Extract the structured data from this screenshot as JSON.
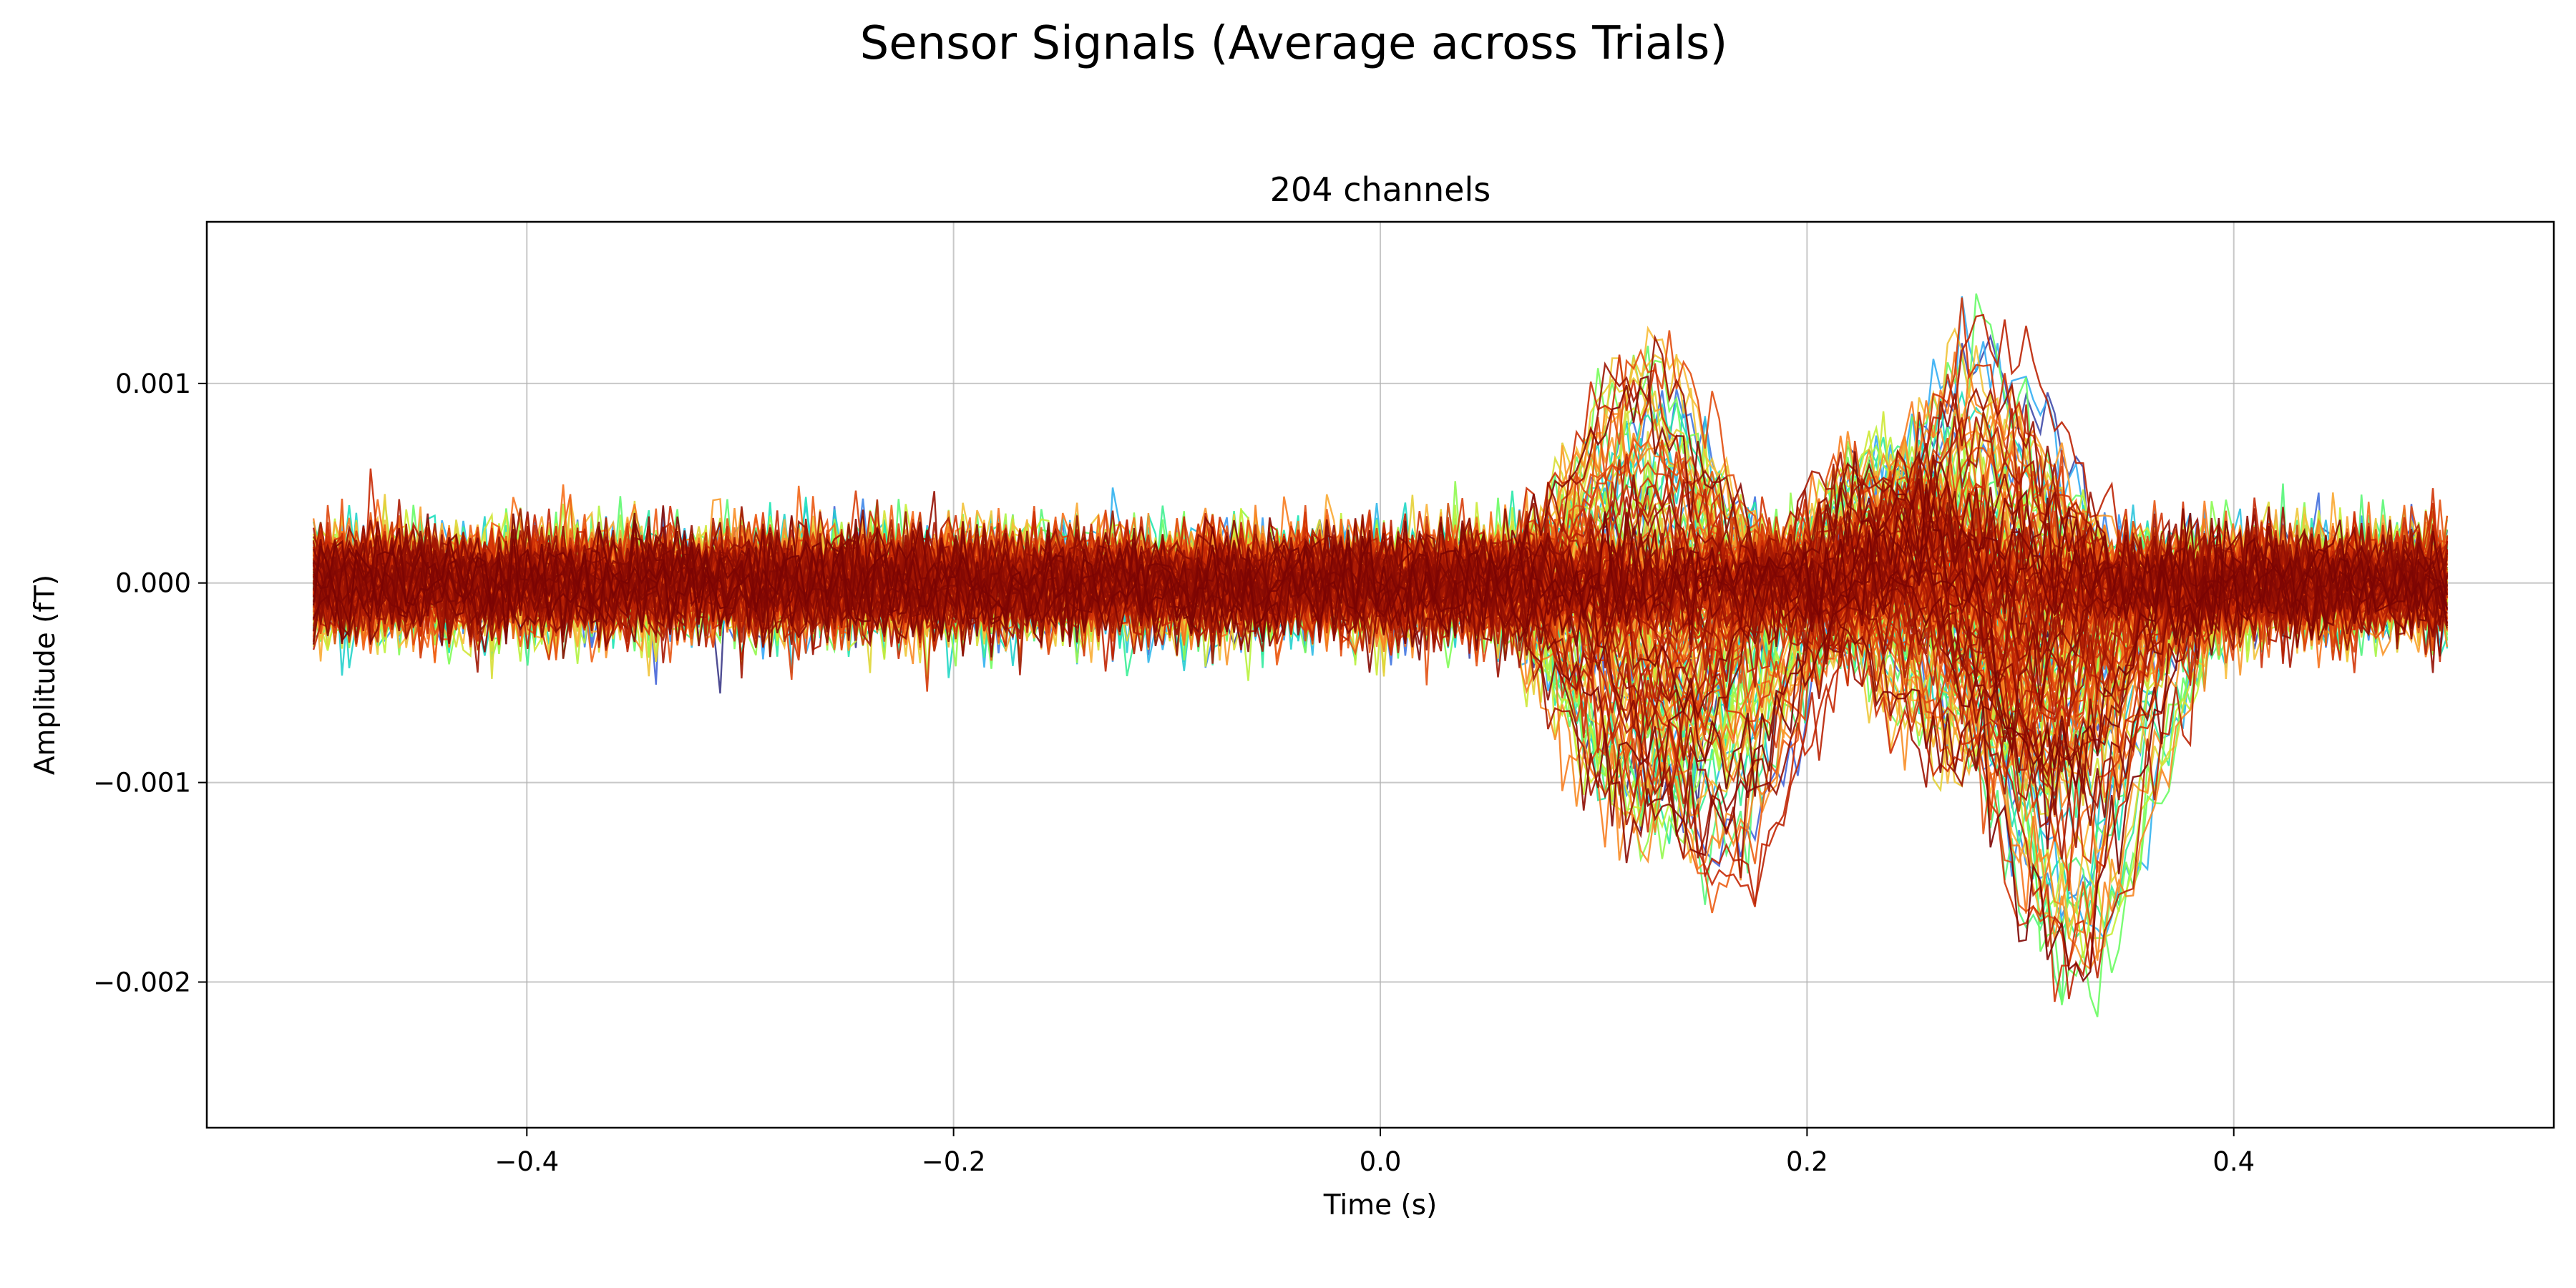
{
  "figure": {
    "suptitle": "Sensor Signals  (Average across Trials)"
  },
  "chart_data": {
    "type": "line",
    "title": "204 channels",
    "xlabel": "Time (s)",
    "ylabel": "Amplitude (fT)",
    "xlim": [
      -0.55,
      0.55
    ],
    "ylim": [
      -0.00273,
      0.00181
    ],
    "xticks": [
      -0.4,
      -0.2,
      0.0,
      0.2,
      0.4
    ],
    "xtick_labels": [
      "−0.4",
      "−0.2",
      "0.0",
      "0.2",
      "0.4"
    ],
    "yticks": [
      0.001,
      0.0,
      -0.001,
      -0.002
    ],
    "ytick_labels": [
      "0.001",
      "0.000",
      "−0.001",
      "−0.002"
    ],
    "grid": true,
    "legend": false,
    "n_series": 204,
    "time_range": [
      -0.5,
      0.5
    ],
    "colormap": "turbo",
    "colormap_stops": [
      "#30123b",
      "#4662d7",
      "#36aaf9",
      "#1ae4b6",
      "#72fe5e",
      "#c8ef34",
      "#faba39",
      "#f66b19",
      "#ca2a04",
      "#7a0403"
    ],
    "baseline_noise_amplitude": 0.00022,
    "series": [
      {
        "name": "",
        "peaks": [
          [
            0.125,
            0.00095,
            0.028
          ],
          [
            0.275,
            -0.00075,
            0.035
          ]
        ]
      },
      {
        "name": "",
        "peaks": [
          [
            0.12,
            -0.00105,
            0.03
          ],
          [
            0.235,
            0.00055,
            0.03
          ]
        ]
      },
      {
        "name": "",
        "peaks": [
          [
            0.28,
            0.0011,
            0.03
          ]
        ]
      },
      {
        "name": "",
        "peaks": [
          [
            0.325,
            -0.0017,
            0.03
          ]
        ]
      },
      {
        "name": "",
        "peaks": [
          [
            0.16,
            -0.0013,
            0.03
          ]
        ]
      },
      {
        "name": "",
        "peaks": [
          [
            0.27,
            0.0007,
            0.025
          ],
          [
            0.305,
            -0.0011,
            0.03
          ]
        ]
      }
    ]
  }
}
